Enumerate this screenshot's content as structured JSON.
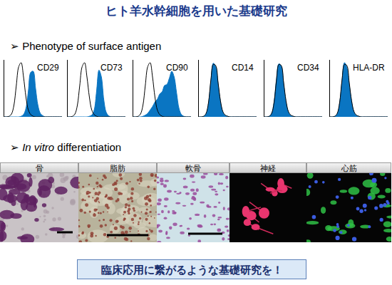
{
  "title": "ヒト羊水幹細胞を用いた基礎研究",
  "bullet": "➢",
  "phenotype": {
    "heading": "Phenotype of surface antigen"
  },
  "chart_data": [
    {
      "type": "line",
      "title": "CD29",
      "tick_labels": false,
      "xlim": [
        0,
        24
      ],
      "ylim": [
        0,
        100
      ],
      "x": [
        0,
        1,
        2,
        3,
        4,
        5,
        6,
        7,
        8,
        9,
        10,
        11,
        12,
        13,
        14,
        15,
        16,
        17,
        18,
        19,
        20,
        21,
        22,
        23,
        24
      ],
      "series": [
        {
          "type": "area",
          "color": "#0a75c2",
          "values": [
            0,
            0,
            0,
            0,
            0,
            0,
            0,
            1,
            4,
            15,
            45,
            78,
            80,
            50,
            20,
            6,
            2,
            0,
            0,
            0,
            0,
            0,
            0,
            0,
            0
          ]
        },
        {
          "type": "line",
          "color": "#000000",
          "values": [
            0,
            0,
            1,
            5,
            20,
            55,
            88,
            95,
            70,
            35,
            12,
            4,
            1,
            0,
            0,
            0,
            0,
            0,
            0,
            0,
            0,
            0,
            0,
            0,
            0
          ]
        }
      ]
    },
    {
      "type": "line",
      "title": "CD73",
      "tick_labels": false,
      "xlim": [
        0,
        24
      ],
      "ylim": [
        0,
        100
      ],
      "x": [
        0,
        1,
        2,
        3,
        4,
        5,
        6,
        7,
        8,
        9,
        10,
        11,
        12,
        13,
        14,
        15,
        16,
        17,
        18,
        19,
        20,
        21,
        22,
        23,
        24
      ],
      "series": [
        {
          "type": "area",
          "color": "#0a75c2",
          "values": [
            0,
            0,
            0,
            0,
            0,
            0,
            0,
            0,
            0,
            1,
            3,
            12,
            45,
            82,
            70,
            30,
            8,
            2,
            0,
            0,
            0,
            0,
            0,
            0,
            0
          ]
        },
        {
          "type": "line",
          "color": "#000000",
          "values": [
            0,
            0,
            1,
            5,
            20,
            55,
            88,
            95,
            70,
            35,
            12,
            4,
            1,
            0,
            0,
            0,
            0,
            0,
            0,
            0,
            0,
            0,
            0,
            0,
            0
          ]
        }
      ]
    },
    {
      "type": "line",
      "title": "CD90",
      "tick_labels": false,
      "xlim": [
        0,
        24
      ],
      "ylim": [
        0,
        100
      ],
      "x": [
        0,
        1,
        2,
        3,
        4,
        5,
        6,
        7,
        8,
        9,
        10,
        11,
        12,
        13,
        14,
        15,
        16,
        17,
        18,
        19,
        20,
        21,
        22,
        23,
        24
      ],
      "series": [
        {
          "type": "area",
          "color": "#0a75c2",
          "values": [
            0,
            0,
            0,
            0,
            1,
            3,
            6,
            12,
            18,
            26,
            31,
            40,
            44,
            55,
            57,
            68,
            80,
            70,
            42,
            15,
            4,
            1,
            0,
            0,
            0
          ]
        },
        {
          "type": "line",
          "color": "#000000",
          "values": [
            0,
            0,
            1,
            5,
            20,
            55,
            88,
            95,
            70,
            35,
            12,
            4,
            1,
            0,
            0,
            0,
            0,
            0,
            0,
            0,
            0,
            0,
            0,
            0,
            0
          ]
        }
      ]
    },
    {
      "type": "line",
      "title": "CD14",
      "tick_labels": false,
      "xlim": [
        0,
        24
      ],
      "ylim": [
        0,
        100
      ],
      "x": [
        0,
        1,
        2,
        3,
        4,
        5,
        6,
        7,
        8,
        9,
        10,
        11,
        12,
        13,
        14,
        15,
        16,
        17,
        18,
        19,
        20,
        21,
        22,
        23,
        24
      ],
      "series": [
        {
          "type": "area",
          "color": "#0a75c2",
          "values": [
            0,
            0,
            1,
            5,
            23,
            62,
            94,
            88,
            58,
            26,
            8,
            2,
            1,
            0,
            0,
            0,
            0,
            0,
            0,
            0,
            0,
            0,
            0,
            0,
            0
          ]
        },
        {
          "type": "line",
          "color": "#000000",
          "values": [
            0,
            0,
            1,
            6,
            25,
            65,
            92,
            90,
            60,
            28,
            9,
            3,
            1,
            0,
            0,
            0,
            0,
            0,
            0,
            0,
            0,
            0,
            0,
            0,
            0
          ]
        }
      ]
    },
    {
      "type": "line",
      "title": "CD34",
      "tick_labels": false,
      "xlim": [
        0,
        24
      ],
      "ylim": [
        0,
        100
      ],
      "x": [
        0,
        1,
        2,
        3,
        4,
        5,
        6,
        7,
        8,
        9,
        10,
        11,
        12,
        13,
        14,
        15,
        16,
        17,
        18,
        19,
        20,
        21,
        22,
        23,
        24
      ],
      "series": [
        {
          "type": "area",
          "color": "#0a75c2",
          "values": [
            0,
            0,
            1,
            6,
            26,
            66,
            93,
            89,
            57,
            25,
            8,
            2,
            1,
            0,
            0,
            0,
            0,
            0,
            0,
            0,
            0,
            0,
            0,
            0,
            0
          ]
        },
        {
          "type": "line",
          "color": "#000000",
          "values": [
            0,
            0,
            1,
            6,
            25,
            64,
            92,
            90,
            60,
            28,
            9,
            3,
            1,
            0,
            0,
            0,
            0,
            0,
            0,
            0,
            0,
            0,
            0,
            0,
            0
          ]
        }
      ]
    },
    {
      "type": "line",
      "title": "HLA-DR",
      "tick_labels": false,
      "xlim": [
        0,
        24
      ],
      "ylim": [
        0,
        100
      ],
      "x": [
        0,
        1,
        2,
        3,
        4,
        5,
        6,
        7,
        8,
        9,
        10,
        11,
        12,
        13,
        14,
        15,
        16,
        17,
        18,
        19,
        20,
        21,
        22,
        23,
        24
      ],
      "series": [
        {
          "type": "area",
          "color": "#0a75c2",
          "values": [
            0,
            0,
            1,
            5,
            24,
            63,
            95,
            87,
            57,
            26,
            8,
            2,
            1,
            0,
            0,
            0,
            0,
            0,
            0,
            0,
            0,
            0,
            0,
            0,
            0
          ]
        },
        {
          "type": "line",
          "color": "#000000",
          "values": [
            0,
            0,
            1,
            6,
            25,
            65,
            92,
            90,
            60,
            28,
            9,
            3,
            1,
            0,
            0,
            0,
            0,
            0,
            0,
            0,
            0,
            0,
            0,
            0,
            0
          ]
        }
      ]
    }
  ],
  "differentiation": {
    "heading": {
      "italic": "In vitro",
      "rest": "differentiation"
    },
    "panels": [
      "骨",
      "脂肪",
      "軟骨",
      "神経",
      "心筋"
    ]
  },
  "footer": "臨床応用に繋がるような基礎研究を！"
}
